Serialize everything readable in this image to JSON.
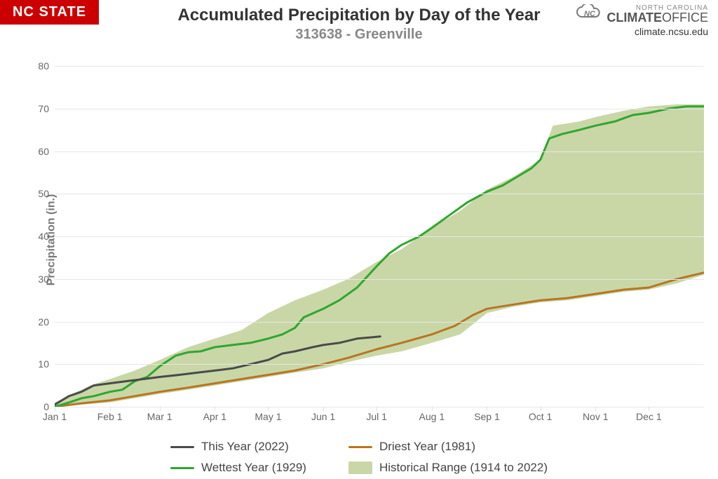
{
  "badge": {
    "text": "NC STATE",
    "bg": "#cc0000",
    "color": "#ffffff"
  },
  "logo": {
    "nc_line": "NORTH CAROLINA",
    "climate_word": "CLIMATE",
    "office_word": "OFFICE",
    "url": "climate.ncsu.edu",
    "icon_color": "#7a7a7a"
  },
  "title": "Accumulated Precipitation by Day of the Year",
  "subtitle": "313638 - Greenville",
  "title_fontsize": 24,
  "subtitle_fontsize": 20,
  "ylabel": "Precipitation (in.)",
  "ylim": [
    0,
    82
  ],
  "yticks": [
    0,
    10,
    20,
    30,
    40,
    50,
    60,
    70,
    80
  ],
  "xlim_days": [
    0,
    365
  ],
  "xticks": [
    {
      "day": 0,
      "label": "Jan 1"
    },
    {
      "day": 31,
      "label": "Feb 1"
    },
    {
      "day": 59,
      "label": "Mar 1"
    },
    {
      "day": 90,
      "label": "Apr 1"
    },
    {
      "day": 120,
      "label": "May 1"
    },
    {
      "day": 151,
      "label": "Jun 1"
    },
    {
      "day": 181,
      "label": "Jul 1"
    },
    {
      "day": 212,
      "label": "Aug 1"
    },
    {
      "day": 243,
      "label": "Sep 1"
    },
    {
      "day": 273,
      "label": "Oct 1"
    },
    {
      "day": 304,
      "label": "Nov 1"
    },
    {
      "day": 334,
      "label": "Dec 1"
    }
  ],
  "grid_color": "#e6e6e6",
  "background_color": "#ffffff",
  "range": {
    "color": "#b7c98a",
    "opacity": 0.75,
    "upper": [
      [
        0,
        1
      ],
      [
        10,
        3
      ],
      [
        20,
        5
      ],
      [
        31,
        6.5
      ],
      [
        45,
        8.5
      ],
      [
        59,
        11
      ],
      [
        75,
        14
      ],
      [
        90,
        16
      ],
      [
        105,
        18
      ],
      [
        120,
        22
      ],
      [
        135,
        25
      ],
      [
        151,
        27.5
      ],
      [
        165,
        30
      ],
      [
        181,
        34
      ],
      [
        195,
        37
      ],
      [
        212,
        42
      ],
      [
        228,
        46
      ],
      [
        243,
        51
      ],
      [
        258,
        54
      ],
      [
        273,
        58
      ],
      [
        280,
        66
      ],
      [
        295,
        67
      ],
      [
        304,
        68
      ],
      [
        320,
        69.5
      ],
      [
        334,
        70.5
      ],
      [
        350,
        71
      ],
      [
        365,
        71
      ]
    ],
    "lower": [
      [
        0,
        0
      ],
      [
        15,
        0.5
      ],
      [
        31,
        1
      ],
      [
        45,
        2
      ],
      [
        59,
        3
      ],
      [
        75,
        4
      ],
      [
        90,
        5
      ],
      [
        105,
        6
      ],
      [
        120,
        7
      ],
      [
        135,
        8
      ],
      [
        151,
        9
      ],
      [
        165,
        10.5
      ],
      [
        181,
        12
      ],
      [
        195,
        13
      ],
      [
        212,
        15
      ],
      [
        228,
        17
      ],
      [
        243,
        22
      ],
      [
        258,
        23.5
      ],
      [
        273,
        24.5
      ],
      [
        288,
        25
      ],
      [
        304,
        26
      ],
      [
        320,
        27
      ],
      [
        334,
        27.5
      ],
      [
        350,
        29
      ],
      [
        365,
        31
      ]
    ]
  },
  "series": {
    "wettest": {
      "label": "Wettest Year (1929)",
      "color": "#2fa62f",
      "width": 3,
      "points": [
        [
          0,
          0
        ],
        [
          8,
          1
        ],
        [
          15,
          2
        ],
        [
          22,
          2.5
        ],
        [
          31,
          3.5
        ],
        [
          38,
          4
        ],
        [
          45,
          6
        ],
        [
          52,
          7
        ],
        [
          59,
          9.5
        ],
        [
          68,
          12
        ],
        [
          75,
          12.8
        ],
        [
          82,
          13
        ],
        [
          90,
          14
        ],
        [
          100,
          14.5
        ],
        [
          110,
          15
        ],
        [
          120,
          16
        ],
        [
          128,
          17
        ],
        [
          135,
          18.5
        ],
        [
          140,
          21
        ],
        [
          151,
          23
        ],
        [
          160,
          25
        ],
        [
          170,
          28
        ],
        [
          181,
          33
        ],
        [
          188,
          36
        ],
        [
          195,
          38
        ],
        [
          205,
          40
        ],
        [
          212,
          42
        ],
        [
          222,
          45
        ],
        [
          232,
          48
        ],
        [
          243,
          50.5
        ],
        [
          252,
          52
        ],
        [
          260,
          54
        ],
        [
          268,
          56
        ],
        [
          273,
          58
        ],
        [
          278,
          63
        ],
        [
          285,
          64
        ],
        [
          295,
          65
        ],
        [
          304,
          66
        ],
        [
          315,
          67
        ],
        [
          325,
          68.5
        ],
        [
          334,
          69
        ],
        [
          345,
          70
        ],
        [
          355,
          70.5
        ],
        [
          365,
          70.5
        ]
      ]
    },
    "driest": {
      "label": "Driest Year (1981)",
      "color": "#b87520",
      "width": 3,
      "points": [
        [
          0,
          0
        ],
        [
          15,
          0.8
        ],
        [
          31,
          1.5
        ],
        [
          45,
          2.5
        ],
        [
          59,
          3.5
        ],
        [
          75,
          4.5
        ],
        [
          90,
          5.5
        ],
        [
          105,
          6.5
        ],
        [
          120,
          7.5
        ],
        [
          135,
          8.5
        ],
        [
          151,
          10
        ],
        [
          165,
          11.5
        ],
        [
          181,
          13.5
        ],
        [
          195,
          15
        ],
        [
          212,
          17
        ],
        [
          225,
          19
        ],
        [
          235,
          21.5
        ],
        [
          243,
          23
        ],
        [
          258,
          24
        ],
        [
          273,
          25
        ],
        [
          288,
          25.5
        ],
        [
          304,
          26.5
        ],
        [
          320,
          27.5
        ],
        [
          334,
          28
        ],
        [
          350,
          30
        ],
        [
          365,
          31.5
        ]
      ]
    },
    "this_year": {
      "label": "This Year (2022)",
      "color": "#4a4a4a",
      "width": 3,
      "points": [
        [
          0,
          0.5
        ],
        [
          8,
          2.5
        ],
        [
          15,
          3.5
        ],
        [
          22,
          5
        ],
        [
          31,
          5.5
        ],
        [
          40,
          6
        ],
        [
          50,
          6.5
        ],
        [
          59,
          7
        ],
        [
          70,
          7.5
        ],
        [
          80,
          8
        ],
        [
          90,
          8.5
        ],
        [
          100,
          9
        ],
        [
          110,
          10
        ],
        [
          120,
          11
        ],
        [
          128,
          12.5
        ],
        [
          135,
          13
        ],
        [
          145,
          14
        ],
        [
          151,
          14.5
        ],
        [
          160,
          15
        ],
        [
          170,
          16
        ],
        [
          178,
          16.3
        ],
        [
          183,
          16.5
        ]
      ]
    }
  },
  "legend": {
    "this_year": "This Year (2022)",
    "wettest": "Wettest Year (1929)",
    "driest": "Driest Year (1981)",
    "range": "Historical Range (1914 to 2022)"
  }
}
